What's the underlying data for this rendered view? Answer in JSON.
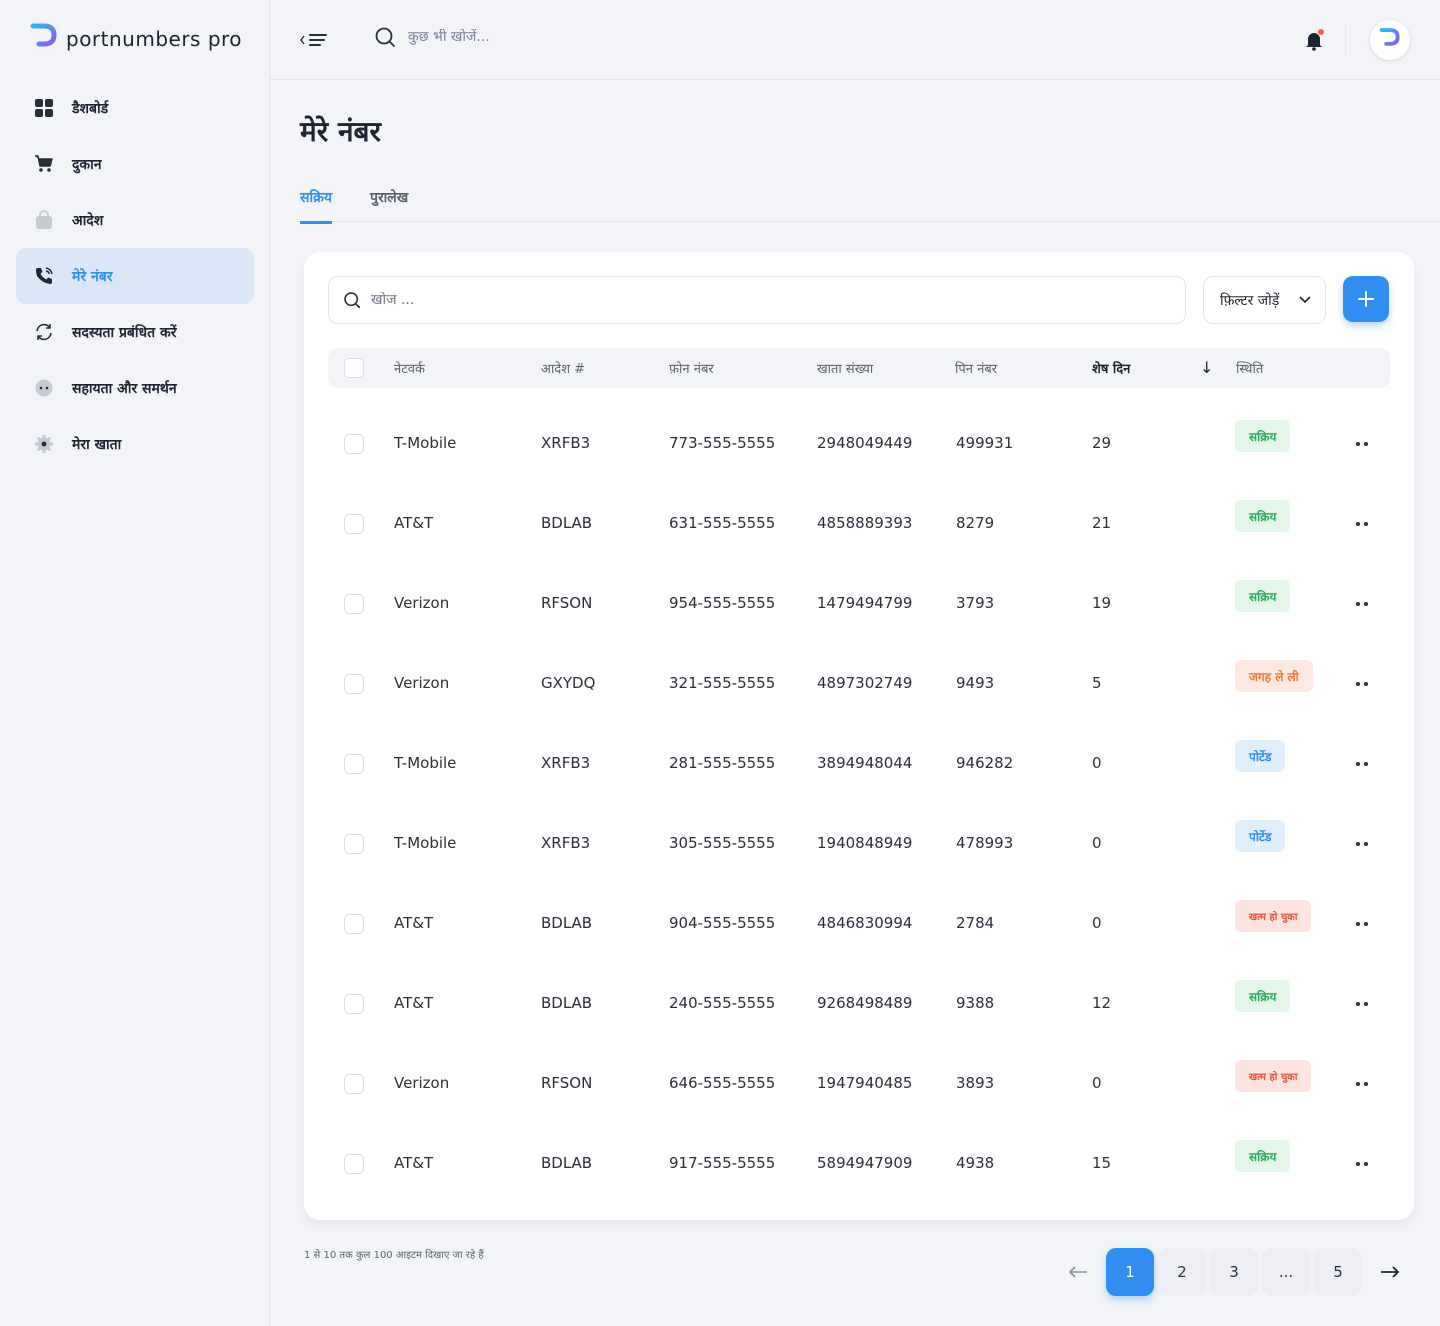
{
  "brand": {
    "name": "portnumbers pro",
    "colors": {
      "accent": "#2f8ef0",
      "success": "#2bab5c",
      "warning": "#f07a3c",
      "danger": "#e9543e"
    }
  },
  "sidebar": {
    "items": [
      {
        "label": "डैशबोर्ड",
        "icon": "dashboard-grid-icon"
      },
      {
        "label": "दुकान",
        "icon": "cart-icon"
      },
      {
        "label": "आदेश",
        "icon": "bag-icon"
      },
      {
        "label": "मेरे नंबर",
        "icon": "phone-icon",
        "active": true
      },
      {
        "label": "सदस्यता प्रबंधित करें",
        "icon": "refresh-icon"
      },
      {
        "label": "सहायता और समर्थन",
        "icon": "chat-icon"
      },
      {
        "label": "मेरा खाता",
        "icon": "gear-icon"
      }
    ]
  },
  "topbar": {
    "search_placeholder": "कुछ भी खोजें..."
  },
  "page": {
    "title": "मेरे नंबर",
    "tabs": [
      {
        "label": "सक्रिय",
        "active": true
      },
      {
        "label": "पुरालेख"
      }
    ]
  },
  "toolbar": {
    "search_placeholder": "खोज ...",
    "filter_label": "फ़िल्टर जोड़ें"
  },
  "table": {
    "headers": {
      "network": "नेटवर्क",
      "order": "आदेश #",
      "phone": "फ़ोन नंबर",
      "account": "खाता संख्या",
      "pin": "पिन नंबर",
      "days": "शेष दिन",
      "status": "स्थिति"
    },
    "sort_column": "days",
    "rows": [
      {
        "network": "T-Mobile",
        "order": "XRFB3",
        "phone": "773-555-5555",
        "account": "2948049449",
        "pin": "499931",
        "days": "29",
        "status": "सक्रिय",
        "status_type": "active"
      },
      {
        "network": "AT&T",
        "order": "BDLAB",
        "phone": "631-555-5555",
        "account": "4858889393",
        "pin": "8279",
        "days": "21",
        "status": "सक्रिय",
        "status_type": "active"
      },
      {
        "network": "Verizon",
        "order": "RFSON",
        "phone": "954-555-5555",
        "account": "1479494799",
        "pin": "3793",
        "days": "19",
        "status": "सक्रिय",
        "status_type": "active"
      },
      {
        "network": "Verizon",
        "order": "GXYDQ",
        "phone": "321-555-5555",
        "account": "4897302749",
        "pin": "9493",
        "days": "5",
        "status": "जगह ले ली",
        "status_type": "taken"
      },
      {
        "network": "T-Mobile",
        "order": "XRFB3",
        "phone": "281-555-5555",
        "account": "3894948044",
        "pin": "946282",
        "days": "0",
        "status": "पोर्टेड",
        "status_type": "ported"
      },
      {
        "network": "T-Mobile",
        "order": "XRFB3",
        "phone": "305-555-5555",
        "account": "1940848949",
        "pin": "478993",
        "days": "0",
        "status": "पोर्टेड",
        "status_type": "ported"
      },
      {
        "network": "AT&T",
        "order": "BDLAB",
        "phone": "904-555-5555",
        "account": "4846830994",
        "pin": "2784",
        "days": "0",
        "status": "खत्म हो चुका",
        "status_type": "expired"
      },
      {
        "network": "AT&T",
        "order": "BDLAB",
        "phone": "240-555-5555",
        "account": "9268498489",
        "pin": "9388",
        "days": "12",
        "status": "सक्रिय",
        "status_type": "active"
      },
      {
        "network": "Verizon",
        "order": "RFSON",
        "phone": "646-555-5555",
        "account": "1947940485",
        "pin": "3893",
        "days": "0",
        "status": "खत्म हो चुका",
        "status_type": "expired"
      },
      {
        "network": "AT&T",
        "order": "BDLAB",
        "phone": "917-555-5555",
        "account": "5894947909",
        "pin": "4938",
        "days": "15",
        "status": "सक्रिय",
        "status_type": "active"
      }
    ]
  },
  "pagination": {
    "summary": "1 से 10 तक कुल 100 आइटम दिखाए जा रहे हैं",
    "pages": [
      "1",
      "2",
      "3",
      "...",
      "5"
    ],
    "current": "1"
  }
}
